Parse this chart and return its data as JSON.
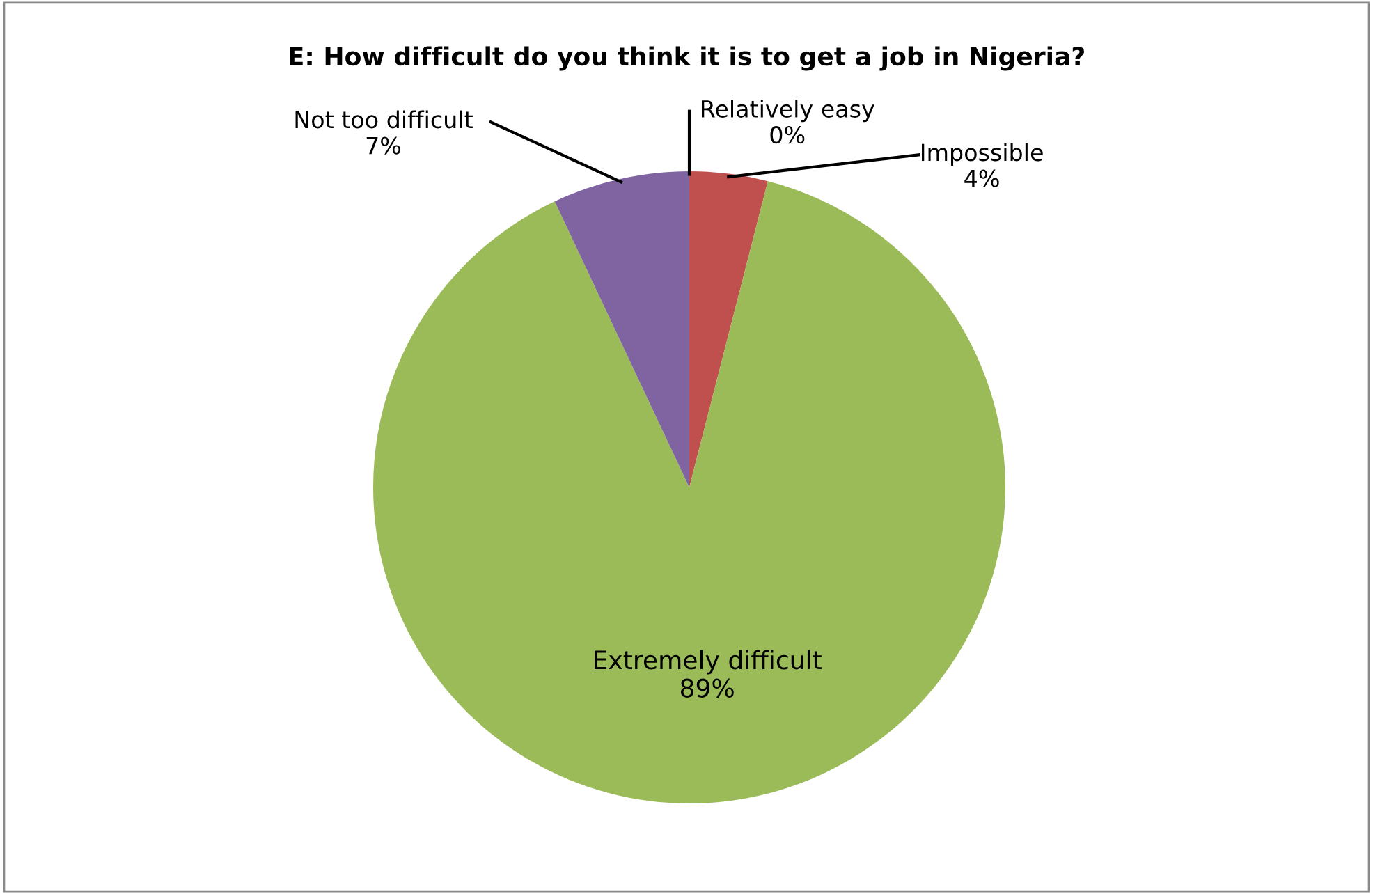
{
  "chart_data": {
    "type": "pie",
    "title": "E: How difficult do you think it is to get a job in Nigeria?",
    "categories": [
      "Relatively easy",
      "Impossible",
      "Extremely difficult",
      "Not too difficult"
    ],
    "values": [
      0,
      4,
      89,
      7
    ],
    "colors": [
      "#4f81bd",
      "#c0504d",
      "#9bbb59",
      "#8064a2"
    ],
    "value_labels": [
      "0%",
      "4%",
      "89%",
      "7%"
    ],
    "legend": false
  }
}
